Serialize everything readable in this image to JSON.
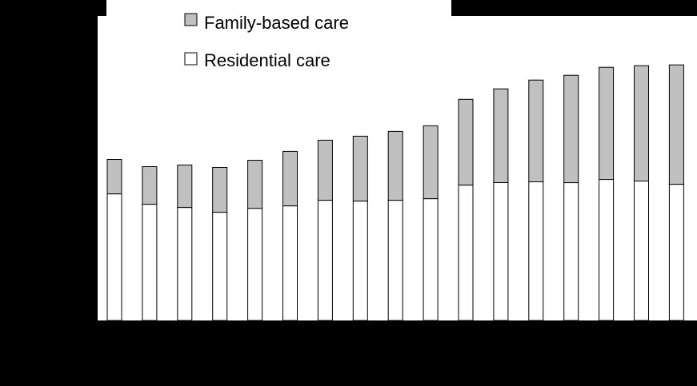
{
  "chart_data": {
    "type": "bar",
    "stacked": true,
    "categories": [
      "",
      "",
      "",
      "",
      "",
      "",
      "",
      "",
      "",
      "",
      "",
      "",
      "",
      "",
      "",
      "",
      ""
    ],
    "series": [
      {
        "name": "Residential care",
        "color": "#ffffff",
        "values": [
          158,
          145,
          141,
          135,
          140,
          143,
          150,
          149,
          150,
          152,
          169,
          172,
          173,
          172,
          176,
          174,
          170
        ]
      },
      {
        "name": "Family-based care",
        "color": "#c0c0c0",
        "values": [
          43,
          47,
          53,
          56,
          60,
          68,
          75,
          81,
          86,
          91,
          107,
          117,
          127,
          134,
          140,
          144,
          149
        ]
      }
    ],
    "ylim": [
      0,
      380
    ],
    "grid": false,
    "legend_position": "top-center",
    "title": "",
    "xlabel": "",
    "ylabel": ""
  }
}
